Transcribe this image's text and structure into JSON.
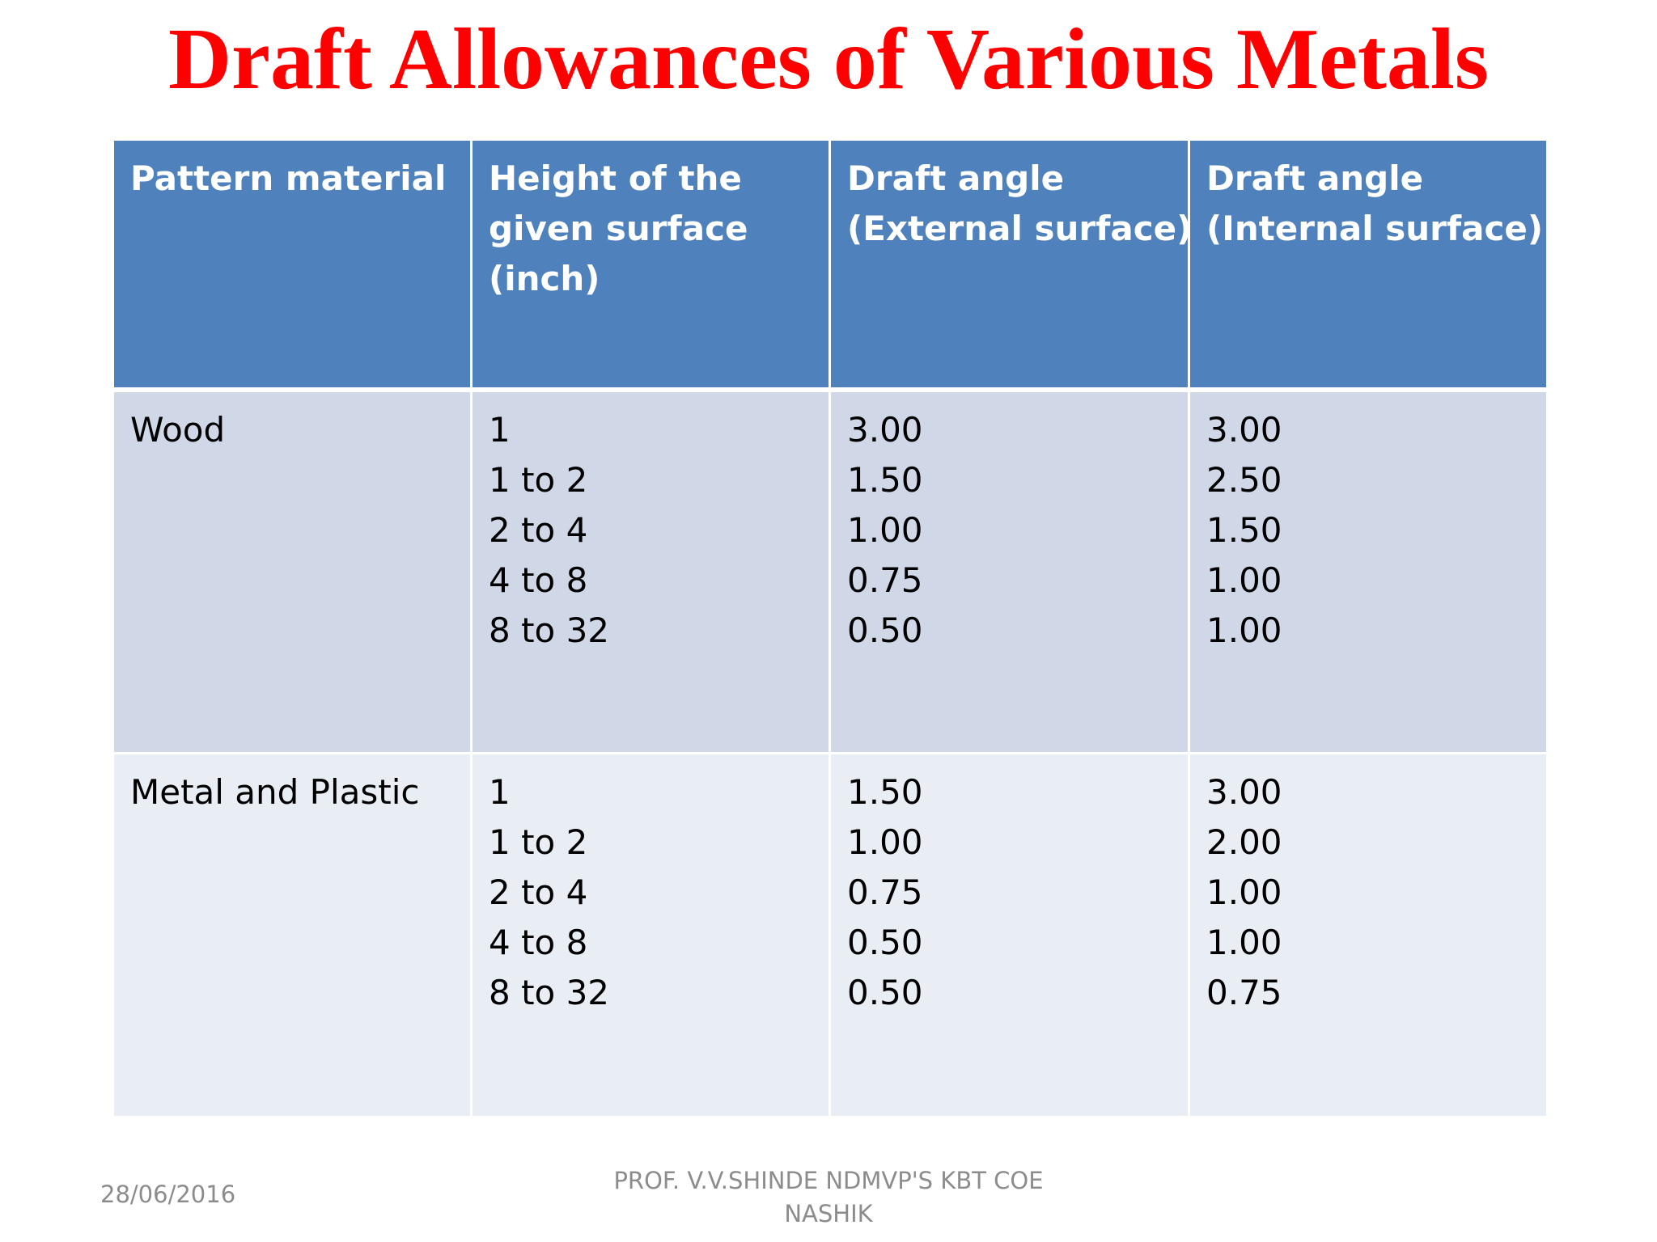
{
  "slide": {
    "title": "Draft Allowances of Various Metals"
  },
  "table": {
    "headers": [
      [
        "Pattern material"
      ],
      [
        "Height of the",
        "given surface",
        "(inch)"
      ],
      [
        "Draft angle",
        "(External surface)"
      ],
      [
        "Draft angle",
        "(Internal surface)"
      ]
    ],
    "rows": [
      {
        "material": "Wood",
        "heights": [
          "1",
          "1 to 2",
          "2 to 4",
          "4 to 8",
          "8 to 32"
        ],
        "external": [
          "3.00",
          "1.50",
          "1.00",
          "0.75",
          "0.50"
        ],
        "internal": [
          "3.00",
          "2.50",
          "1.50",
          "1.00",
          "1.00"
        ]
      },
      {
        "material": "Metal and Plastic",
        "heights": [
          "1",
          "1 to 2",
          "2 to 4",
          "4 to 8",
          "8 to 32"
        ],
        "external": [
          "1.50",
          "1.00",
          "0.75",
          "0.50",
          "0.50"
        ],
        "internal": [
          "3.00",
          "2.00",
          "1.00",
          "1.00",
          "0.75"
        ]
      }
    ]
  },
  "footer": {
    "date": "28/06/2016",
    "credit_line1": "PROF. V.V.SHINDE NDMVP'S KBT COE",
    "credit_line2": "NASHIK"
  },
  "colors": {
    "title": "#ff0000",
    "header_bg": "#4f81bd",
    "row1_bg": "#d0d8e8",
    "row2_bg": "#e9edf4",
    "footer_text": "#8c8c8c"
  }
}
